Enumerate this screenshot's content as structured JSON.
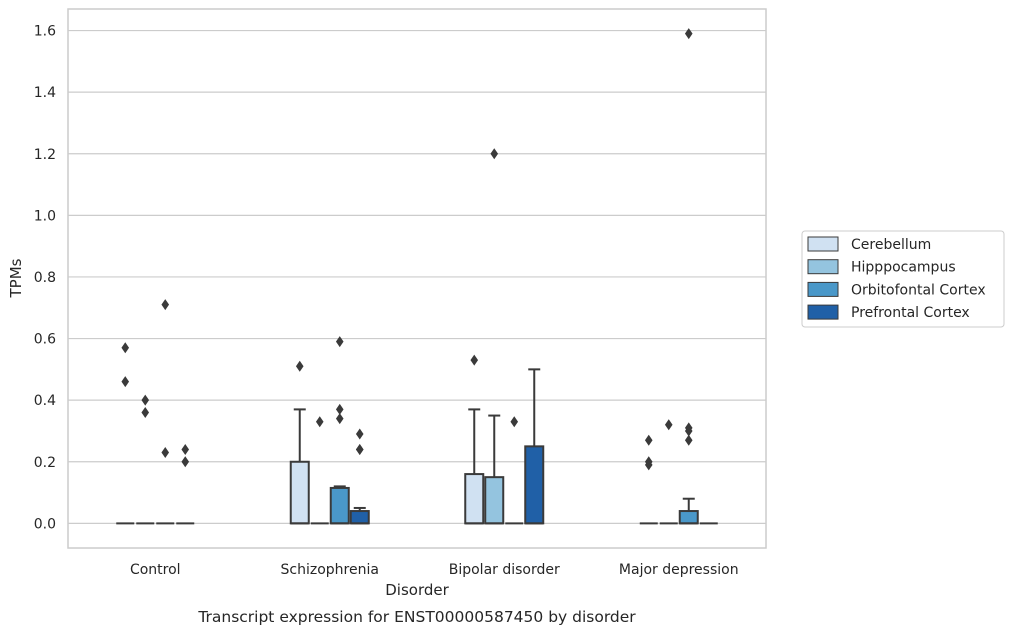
{
  "chart_data": {
    "type": "box",
    "caption": "Transcript expression for ENST00000587450 by disorder",
    "xlabel": "Disorder",
    "ylabel": "TPMs",
    "ylim": [
      -0.08,
      1.67
    ],
    "yticks": [
      "0.0",
      "0.2",
      "0.4",
      "0.6",
      "0.8",
      "1.0",
      "1.2",
      "1.4",
      "1.6"
    ],
    "ytick_values": [
      0.0,
      0.2,
      0.4,
      0.6,
      0.8,
      1.0,
      1.2,
      1.4,
      1.6
    ],
    "grid": true,
    "legend_position": "right",
    "categories": [
      "Control",
      "Schizophrenia",
      "Bipolar disorder",
      "Major depression"
    ],
    "series": [
      {
        "name": "Cerebellum",
        "color": "#d0e1f2",
        "boxes": [
          {
            "q1": 0.0,
            "median": 0.0,
            "q3": 0.0,
            "whisker_low": 0.0,
            "whisker_high": 0.0,
            "outliers": [
              0.57,
              0.46
            ]
          },
          {
            "q1": 0.0,
            "median": 0.0,
            "q3": 0.2,
            "whisker_low": 0.0,
            "whisker_high": 0.37,
            "outliers": [
              0.51
            ]
          },
          {
            "q1": 0.0,
            "median": 0.0,
            "q3": 0.16,
            "whisker_low": 0.0,
            "whisker_high": 0.37,
            "outliers": [
              0.53
            ]
          },
          {
            "q1": 0.0,
            "median": 0.0,
            "q3": 0.0,
            "whisker_low": 0.0,
            "whisker_high": 0.0,
            "outliers": [
              0.27,
              0.2,
              0.19
            ]
          }
        ]
      },
      {
        "name": "Hipppocampus",
        "color": "#94c4df",
        "boxes": [
          {
            "q1": 0.0,
            "median": 0.0,
            "q3": 0.0,
            "whisker_low": 0.0,
            "whisker_high": 0.0,
            "outliers": [
              0.4,
              0.36
            ]
          },
          {
            "q1": 0.0,
            "median": 0.0,
            "q3": 0.0,
            "whisker_low": 0.0,
            "whisker_high": 0.0,
            "outliers": [
              0.33
            ]
          },
          {
            "q1": 0.0,
            "median": 0.0,
            "q3": 0.15,
            "whisker_low": 0.0,
            "whisker_high": 0.35,
            "outliers": [
              1.2
            ]
          },
          {
            "q1": 0.0,
            "median": 0.0,
            "q3": 0.0,
            "whisker_low": 0.0,
            "whisker_high": 0.0,
            "outliers": [
              0.32
            ]
          }
        ]
      },
      {
        "name": "Orbitofontal Cortex",
        "color": "#4a98c9",
        "boxes": [
          {
            "q1": 0.0,
            "median": 0.0,
            "q3": 0.0,
            "whisker_low": 0.0,
            "whisker_high": 0.0,
            "outliers": [
              0.71,
              0.23
            ]
          },
          {
            "q1": 0.0,
            "median": 0.0,
            "q3": 0.115,
            "whisker_low": 0.0,
            "whisker_high": 0.12,
            "outliers": [
              0.59,
              0.37,
              0.34
            ]
          },
          {
            "q1": 0.0,
            "median": 0.0,
            "q3": 0.0,
            "whisker_low": 0.0,
            "whisker_high": 0.0,
            "outliers": [
              0.33
            ]
          },
          {
            "q1": 0.0,
            "median": 0.0,
            "q3": 0.04,
            "whisker_low": 0.0,
            "whisker_high": 0.08,
            "outliers": [
              1.59,
              0.31,
              0.3,
              0.27
            ]
          }
        ]
      },
      {
        "name": "Prefrontal Cortex",
        "color": "#2060a7",
        "boxes": [
          {
            "q1": 0.0,
            "median": 0.0,
            "q3": 0.0,
            "whisker_low": 0.0,
            "whisker_high": 0.0,
            "outliers": [
              0.24,
              0.2
            ]
          },
          {
            "q1": 0.0,
            "median": 0.0,
            "q3": 0.04,
            "whisker_low": 0.0,
            "whisker_high": 0.05,
            "outliers": [
              0.29,
              0.24,
              0.24
            ]
          },
          {
            "q1": 0.0,
            "median": 0.0,
            "q3": 0.25,
            "whisker_low": 0.0,
            "whisker_high": 0.5,
            "outliers": []
          },
          {
            "q1": 0.0,
            "median": 0.0,
            "q3": 0.0,
            "whisker_low": 0.0,
            "whisker_high": 0.0,
            "outliers": []
          }
        ]
      }
    ]
  },
  "colors": {
    "grid": "#cccccc",
    "frame": "#cccccc",
    "line": "#3a3a3a",
    "text": "#262626"
  }
}
